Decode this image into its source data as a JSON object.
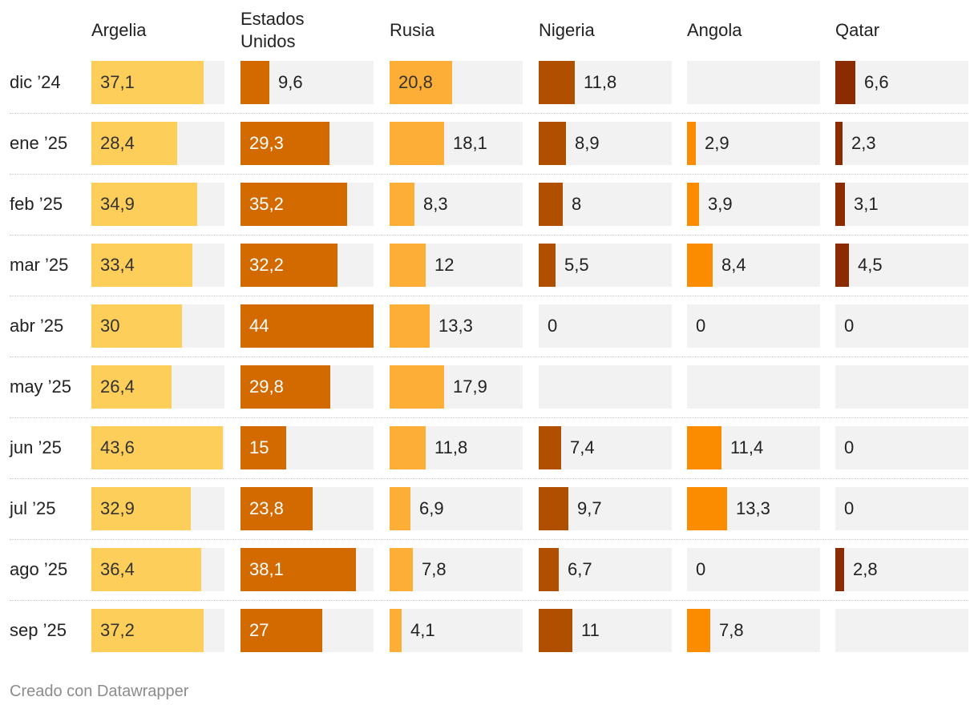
{
  "chart_data": {
    "type": "table",
    "layout": "bar-table",
    "columns": [
      "Argelia",
      "Estados Unidos",
      "Rusia",
      "Nigeria",
      "Angola",
      "Qatar"
    ],
    "column_labels": [
      [
        "Argelia"
      ],
      [
        "Estados",
        "Unidos"
      ],
      [
        "Rusia"
      ],
      [
        "Nigeria"
      ],
      [
        "Angola"
      ],
      [
        "Qatar"
      ]
    ],
    "colors": [
      "#fdce5a",
      "#d26a00",
      "#fdae36",
      "#b04f00",
      "#fb8c00",
      "#8a2c00"
    ],
    "xlim": [
      0,
      44
    ],
    "rows": [
      {
        "label": "dic ’24",
        "values": [
          "37,1",
          "9,6",
          "20,8",
          "11,8",
          null,
          "6,6"
        ]
      },
      {
        "label": "ene ’25",
        "values": [
          "28,4",
          "29,3",
          "18,1",
          "8,9",
          "2,9",
          "2,3"
        ]
      },
      {
        "label": "feb ’25",
        "values": [
          "34,9",
          "35,2",
          "8,3",
          "8",
          "3,9",
          "3,1"
        ]
      },
      {
        "label": "mar ’25",
        "values": [
          "33,4",
          "32,2",
          "12",
          "5,5",
          "8,4",
          "4,5"
        ]
      },
      {
        "label": "abr ’25",
        "values": [
          "30",
          "44",
          "13,3",
          "0",
          "0",
          "0"
        ]
      },
      {
        "label": "may ’25",
        "values": [
          "26,4",
          "29,8",
          "17,9",
          null,
          null,
          null
        ]
      },
      {
        "label": "jun ’25",
        "values": [
          "43,6",
          "15",
          "11,8",
          "7,4",
          "11,4",
          "0"
        ]
      },
      {
        "label": "jul ’25",
        "values": [
          "32,9",
          "23,8",
          "6,9",
          "9,7",
          "13,3",
          "0"
        ]
      },
      {
        "label": "ago ’25",
        "values": [
          "36,4",
          "38,1",
          "7,8",
          "6,7",
          "0",
          "2,8"
        ]
      },
      {
        "label": "sep ’25",
        "values": [
          "37,2",
          "27",
          "4,1",
          "11",
          "7,8",
          null
        ]
      }
    ]
  },
  "footer": {
    "credit": "Creado con Datawrapper"
  }
}
